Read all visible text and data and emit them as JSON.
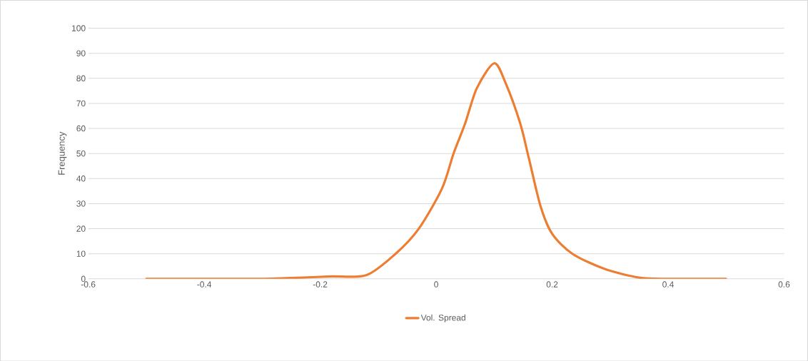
{
  "chart_data": {
    "type": "line",
    "ylabel": "Frequency",
    "x": [
      -0.5,
      -0.4,
      -0.3,
      -0.23,
      -0.18,
      -0.12,
      -0.07,
      -0.03,
      0.01,
      0.03,
      0.05,
      0.07,
      0.1,
      0.12,
      0.145,
      0.16,
      0.18,
      0.2,
      0.235,
      0.29,
      0.35,
      0.4,
      0.5
    ],
    "series": [
      {
        "name": "Vol. Spread",
        "color": "#ed7d31",
        "values": [
          0,
          0,
          0,
          0.5,
          1,
          1.5,
          10,
          20,
          36,
          50,
          62,
          76,
          86,
          78,
          62,
          48,
          29,
          18,
          10,
          4,
          0.5,
          0,
          0
        ]
      }
    ],
    "xlim": [
      -0.6,
      0.6
    ],
    "xticks": [
      -0.6,
      -0.4,
      -0.2,
      0,
      0.2,
      0.4,
      0.6
    ],
    "ylim": [
      0,
      100
    ],
    "yticks": [
      0,
      10,
      20,
      30,
      40,
      50,
      60,
      70,
      80,
      90,
      100
    ],
    "grid": "y",
    "legend": "bottom",
    "marker": "none",
    "line_style": "solid"
  }
}
